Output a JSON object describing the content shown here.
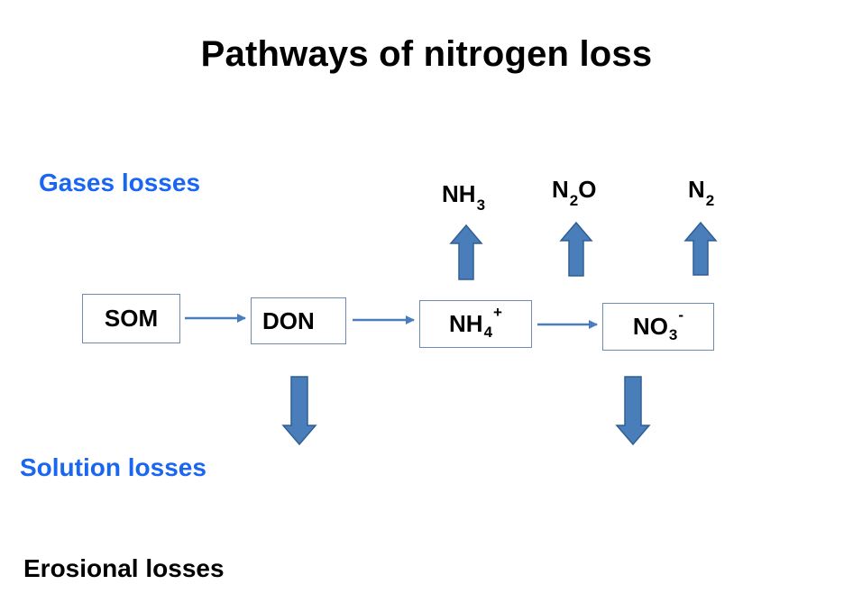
{
  "title": "Pathways of nitrogen loss",
  "labels": {
    "gases": "Gases losses",
    "solution": "Solution losses",
    "erosional": "Erosional losses"
  },
  "nodes": {
    "som": "SOM",
    "don": "DON",
    "nh4": {
      "base": "NH",
      "sub": "4",
      "sup": "+"
    },
    "no3": {
      "base": "NO",
      "sub": "3",
      "sup": "-"
    }
  },
  "gases": {
    "nh3": {
      "base": "NH",
      "sub": "3"
    },
    "n2o": {
      "pre": "N",
      "sub": "2",
      "post": "O"
    },
    "n2": {
      "base": "N",
      "sub": "2"
    }
  },
  "colors": {
    "label_blue": "#1a66f0",
    "arrow_fill": "#4a7ebb",
    "arrow_stroke": "#2f5f94",
    "box_border": "#6f8cb0"
  }
}
